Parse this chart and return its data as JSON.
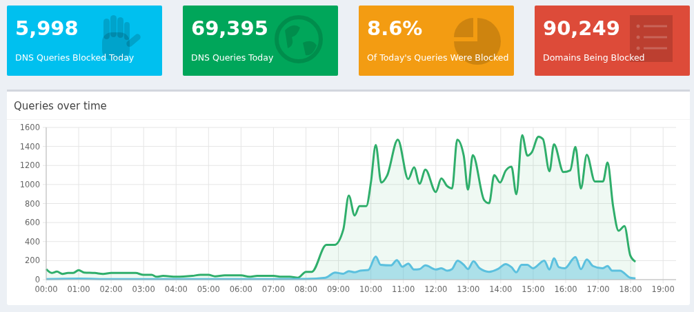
{
  "chart_data": [
    {
      "type": "other",
      "title": "5,998",
      "subtitle": "DNS Queries Blocked Today",
      "color": "#00c0ef"
    },
    {
      "type": "other",
      "title": "69,395",
      "subtitle": "DNS Queries Today",
      "color": "#00a65a"
    },
    {
      "type": "other",
      "title": "8.6%",
      "subtitle": "Of Today's Queries Were Blocked",
      "color": "#f39c12"
    },
    {
      "type": "other",
      "title": "90,249",
      "subtitle": "Domains Being Blocked",
      "color": "#dd4b39"
    },
    {
      "type": "area",
      "title": "Queries over time",
      "xlim": [
        0,
        19.4
      ],
      "ylim": [
        0,
        1600
      ],
      "xticks": [
        {
          "value": 0,
          "label": "00:00"
        },
        {
          "value": 1,
          "label": "01:00"
        },
        {
          "value": 2,
          "label": "02:00"
        },
        {
          "value": 3,
          "label": "03:00"
        },
        {
          "value": 4,
          "label": "04:00"
        },
        {
          "value": 5,
          "label": "05:00"
        },
        {
          "value": 6,
          "label": "06:00"
        },
        {
          "value": 7,
          "label": "07:00"
        },
        {
          "value": 8,
          "label": "08:00"
        },
        {
          "value": 9,
          "label": "09:00"
        },
        {
          "value": 10,
          "label": "10:00"
        },
        {
          "value": 11,
          "label": "11:00"
        },
        {
          "value": 12,
          "label": "12:00"
        },
        {
          "value": 13,
          "label": "13:00"
        },
        {
          "value": 14,
          "label": "14:00"
        },
        {
          "value": 15,
          "label": "15:00"
        },
        {
          "value": 16,
          "label": "16:00"
        },
        {
          "value": 17,
          "label": "17:00"
        },
        {
          "value": 18,
          "label": "18:00"
        },
        {
          "value": 19,
          "label": "19:00"
        }
      ],
      "yticks": [
        0,
        200,
        400,
        600,
        800,
        1000,
        1200,
        1400,
        1600
      ],
      "grid": true,
      "marker": "none",
      "series": [
        {
          "color": "#2fae6b",
          "x": [
            0,
            0.17,
            0.33,
            0.5,
            0.67,
            0.83,
            1.0,
            1.17,
            1.5,
            1.75,
            2.0,
            2.5,
            2.75,
            3.0,
            3.25,
            3.4,
            3.6,
            4.0,
            4.5,
            4.75,
            5.0,
            5.2,
            5.5,
            6.0,
            6.25,
            6.5,
            7.0,
            7.25,
            7.5,
            7.75,
            8.0,
            8.18,
            8.63,
            8.88,
            9.15,
            9.32,
            9.5,
            9.65,
            9.86,
            10.0,
            10.15,
            10.32,
            10.5,
            10.83,
            11.15,
            11.33,
            11.5,
            11.68,
            12.0,
            12.17,
            12.35,
            12.5,
            12.66,
            12.86,
            12.99,
            13.14,
            13.49,
            13.64,
            13.8,
            13.98,
            14.15,
            14.33,
            14.48,
            14.66,
            14.82,
            14.96,
            15.16,
            15.3,
            15.5,
            15.64,
            15.93,
            16.14,
            16.3,
            16.47,
            16.65,
            16.9,
            17.15,
            17.29,
            17.46,
            17.63,
            17.81,
            17.99,
            18.15
          ],
          "values": [
            110,
            70,
            85,
            60,
            70,
            70,
            100,
            75,
            70,
            60,
            70,
            70,
            70,
            50,
            50,
            30,
            40,
            30,
            40,
            50,
            50,
            35,
            45,
            45,
            30,
            40,
            40,
            30,
            30,
            20,
            82,
            82,
            365,
            365,
            526,
            884,
            674,
            773,
            773,
            1020,
            1415,
            1020,
            1094,
            1472,
            1057,
            1180,
            1008,
            1156,
            921,
            1064,
            983,
            958,
            1472,
            1304,
            946,
            1309,
            835,
            803,
            1099,
            1020,
            1144,
            1188,
            897,
            1519,
            1304,
            1341,
            1502,
            1477,
            1139,
            1423,
            1131,
            1149,
            1396,
            958,
            1312,
            1032,
            1032,
            1230,
            773,
            514,
            563,
            254,
            188
          ]
        },
        {
          "color": "#5bc0de",
          "x": [
            0,
            1,
            2,
            3,
            4,
            5,
            6,
            7,
            8,
            8.6,
            8.9,
            9.15,
            9.32,
            9.5,
            9.67,
            9.92,
            10.15,
            10.3,
            10.62,
            10.8,
            10.97,
            11.15,
            11.33,
            11.5,
            11.68,
            12.0,
            12.17,
            12.35,
            12.5,
            12.67,
            12.86,
            12.99,
            13.16,
            13.35,
            13.64,
            13.91,
            14.15,
            14.33,
            14.48,
            14.64,
            14.82,
            14.99,
            15.34,
            15.5,
            15.64,
            15.79,
            15.97,
            16.3,
            16.47,
            16.65,
            16.84,
            17.13,
            17.29,
            17.43,
            17.67,
            17.99,
            18.15
          ],
          "values": [
            5,
            10,
            5,
            5,
            5,
            5,
            5,
            5,
            7,
            20,
            74,
            62,
            89,
            77,
            94,
            101,
            242,
            156,
            150,
            205,
            136,
            168,
            106,
            111,
            150,
            106,
            119,
            94,
            111,
            200,
            156,
            111,
            193,
            119,
            82,
            111,
            163,
            131,
            77,
            156,
            156,
            119,
            200,
            106,
            225,
            131,
            119,
            237,
            111,
            212,
            143,
            119,
            143,
            94,
            94,
            20,
            12
          ]
        }
      ]
    }
  ]
}
